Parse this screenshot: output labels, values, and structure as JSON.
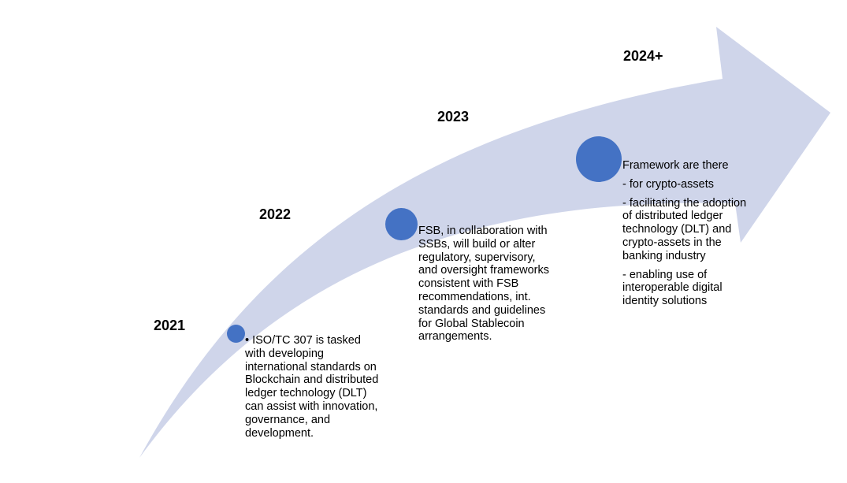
{
  "colors": {
    "arrow_fill": "#cfd5ea",
    "dot_fill": "#4472c4",
    "text": "#000000"
  },
  "milestones": [
    {
      "year": "2021",
      "lines": [
        "• ISO/TC 307 is tasked",
        "with developing",
        "international standards on",
        "Blockchain and distributed",
        "ledger technology (DLT)",
        "can assist with innovation,",
        "governance, and",
        "development."
      ]
    },
    {
      "year": "2022",
      "lines": [
        "FSB, in collaboration with",
        "SSBs, will build or alter",
        "regulatory, supervisory,",
        "and oversight frameworks",
        "consistent with FSB",
        "recommendations, int.",
        "standards and guidelines",
        "for Global Stablecoin",
        "arrangements."
      ]
    },
    {
      "year": "2023"
    },
    {
      "year": "2024+",
      "paragraphs": [
        [
          "Framework are there"
        ],
        [
          "-  for crypto-assets"
        ],
        [
          "- facilitating the adoption",
          "of distributed ledger",
          "technology (DLT) and",
          "crypto-assets in the",
          "banking industry"
        ],
        [
          "-  enabling use of",
          "interoperable digital",
          "identity solutions"
        ]
      ]
    }
  ]
}
